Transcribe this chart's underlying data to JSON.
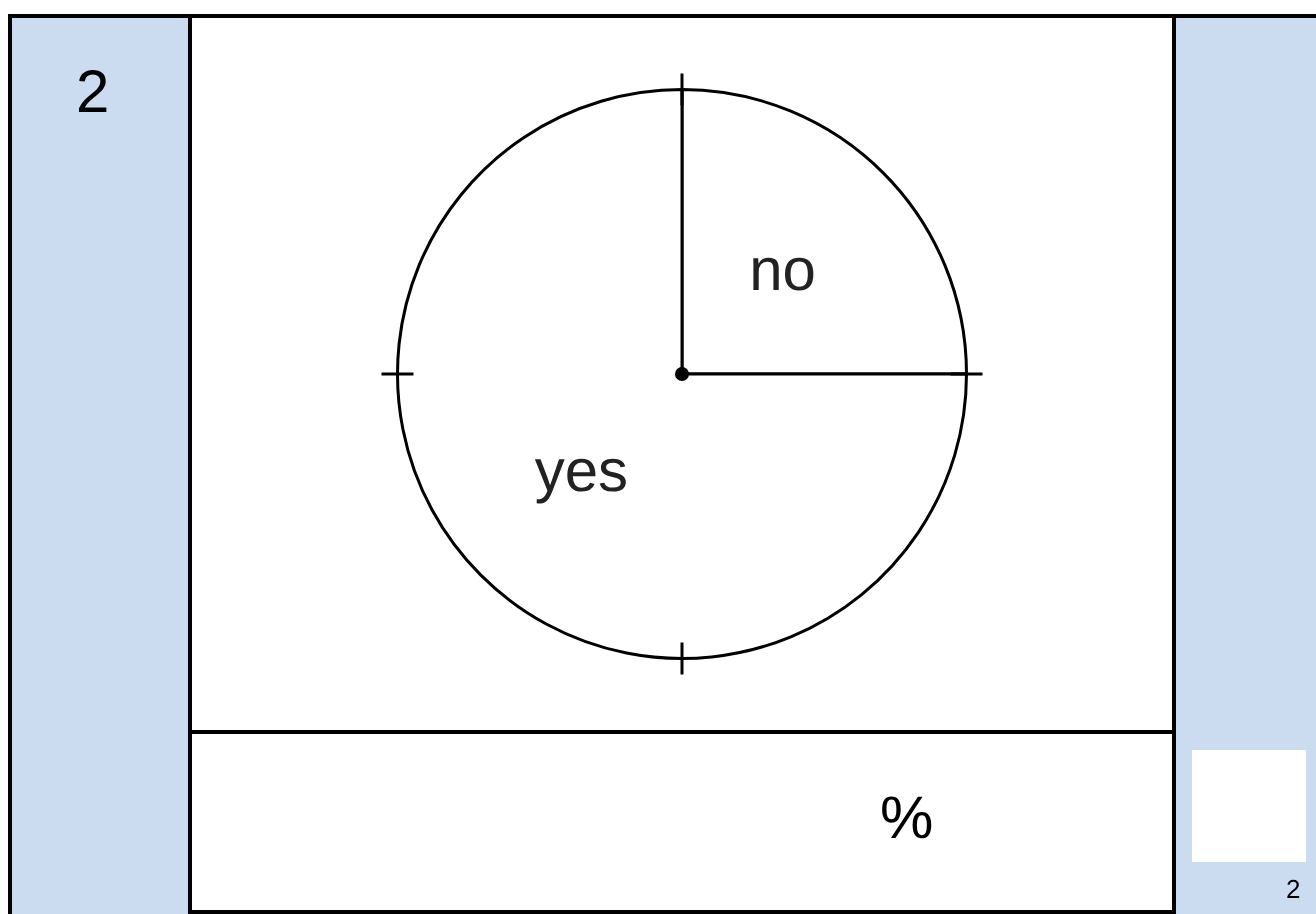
{
  "chart_data": {
    "type": "pie",
    "categories": [
      "no",
      "yes"
    ],
    "values": [
      25,
      75
    ],
    "colors": [
      "#ffffff",
      "#ffffff"
    ],
    "legend": false,
    "annotations": [
      "2",
      "%",
      "2"
    ]
  }
}
